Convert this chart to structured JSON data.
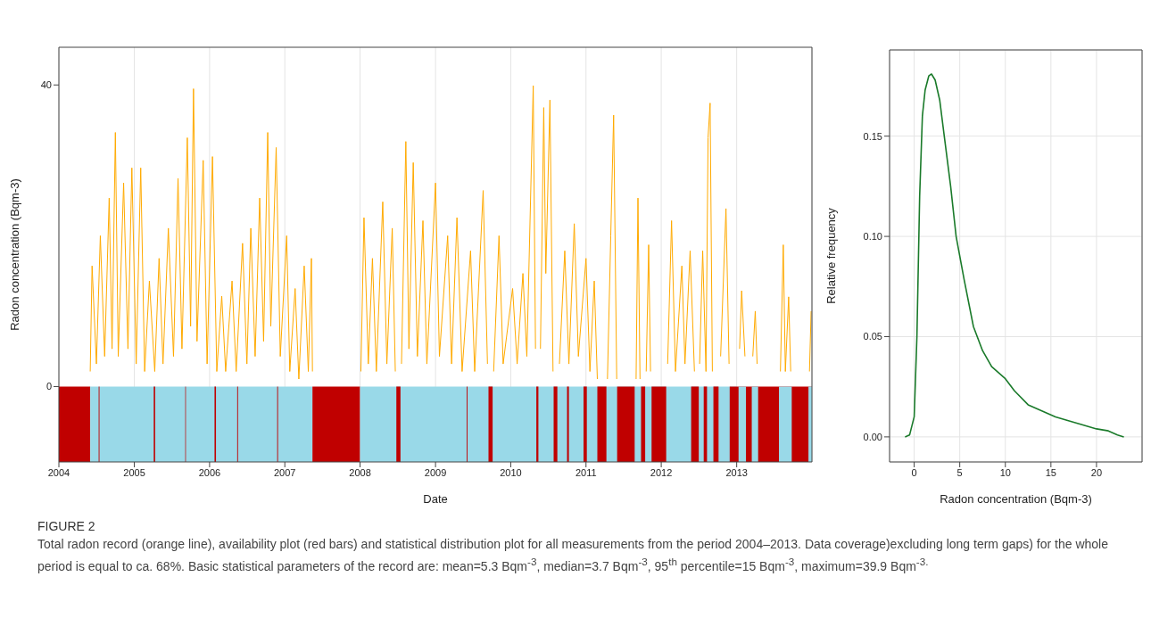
{
  "chart_data": [
    {
      "type": "line",
      "xlabel": "Date",
      "ylabel": "Radon concentration (Bqm-3)",
      "x": [
        "2004-06-01",
        "2004-06-10",
        "2004-07-01",
        "2004-07-20",
        "2004-08-10",
        "2004-09-01",
        "2004-09-15",
        "2004-10-01",
        "2004-10-15",
        "2004-11-10",
        "2004-12-01",
        "2004-12-20",
        "2005-01-10",
        "2005-02-01",
        "2005-02-20",
        "2005-03-15",
        "2005-04-10",
        "2005-05-01",
        "2005-05-20",
        "2005-06-15",
        "2005-07-10",
        "2005-08-01",
        "2005-08-20",
        "2005-09-15",
        "2005-10-01",
        "2005-10-15",
        "2005-11-01",
        "2005-12-01",
        "2005-12-20",
        "2006-01-15",
        "2006-02-05",
        "2006-03-01",
        "2006-03-20",
        "2006-04-20",
        "2006-05-10",
        "2006-06-10",
        "2006-07-01",
        "2006-07-20",
        "2006-08-10",
        "2006-09-01",
        "2006-09-20",
        "2006-10-10",
        "2006-10-25",
        "2006-11-20",
        "2006-12-10",
        "2007-01-10",
        "2007-01-25",
        "2007-02-20",
        "2007-03-10",
        "2007-04-05",
        "2007-04-25",
        "2007-05-10",
        "2007-05-15",
        "2007-09-01",
        "2008-01-05",
        "2008-01-20",
        "2008-02-10",
        "2008-03-01",
        "2008-03-20",
        "2008-04-20",
        "2008-05-10",
        "2008-06-05",
        "2008-06-20",
        "2008-07-05",
        "2008-07-20",
        "2008-08-10",
        "2008-08-25",
        "2008-09-15",
        "2008-10-05",
        "2008-11-01",
        "2008-11-20",
        "2009-01-01",
        "2009-01-20",
        "2009-03-01",
        "2009-03-20",
        "2009-04-15",
        "2009-05-10",
        "2009-06-20",
        "2009-07-10",
        "2009-08-20",
        "2009-09-10",
        "2009-09-25",
        "2009-10-10",
        "2009-11-05",
        "2009-11-25",
        "2010-01-10",
        "2010-02-01",
        "2010-03-01",
        "2010-03-20",
        "2010-04-20",
        "2010-05-01",
        "2010-05-10",
        "2010-05-25",
        "2010-06-10",
        "2010-06-20",
        "2010-07-10",
        "2010-07-25",
        "2010-08-10",
        "2010-08-25",
        "2010-09-20",
        "2010-10-10",
        "2010-11-05",
        "2010-11-25",
        "2011-01-01",
        "2011-01-20",
        "2011-02-10",
        "2011-02-25",
        "2011-03-20",
        "2011-04-15",
        "2011-05-01",
        "2011-05-15",
        "2011-05-30",
        "2011-06-30",
        "2011-09-01",
        "2011-09-10",
        "2011-09-20",
        "2011-10-01",
        "2011-10-20",
        "2011-11-01",
        "2011-11-10",
        "2011-12-10",
        "2012-02-01",
        "2012-02-20",
        "2012-03-10",
        "2012-04-10",
        "2012-04-25",
        "2012-05-20",
        "2012-06-10",
        "2012-06-25",
        "2012-07-05",
        "2012-07-20",
        "2012-08-05",
        "2012-08-15",
        "2012-08-25",
        "2012-09-05",
        "2012-09-25",
        "2012-10-15",
        "2012-11-10",
        "2012-11-25",
        "2012-12-25",
        "2013-01-15",
        "2013-01-25",
        "2013-02-10",
        "2013-03-01",
        "2013-03-20",
        "2013-04-01",
        "2013-04-10",
        "2013-05-01",
        "2013-08-01",
        "2013-08-15",
        "2013-08-25",
        "2013-09-10",
        "2013-09-20",
        "2013-10-15",
        "2013-12-20",
        "2013-12-28"
      ],
      "series": [
        {
          "color": "#ffaa00",
          "values": [
            2,
            16,
            3,
            20,
            4,
            25,
            5,
            33.7,
            4,
            27,
            5,
            29,
            3,
            29,
            2,
            14,
            2,
            17,
            3,
            21,
            4,
            27.6,
            5,
            33,
            8,
            39.5,
            6,
            30,
            3,
            30.5,
            2,
            12,
            2,
            14,
            2,
            19,
            3,
            21,
            4,
            25,
            6,
            33.7,
            8,
            31.7,
            4,
            20,
            2,
            13,
            1,
            16,
            2,
            17,
            2,
            null,
            2,
            22.4,
            3,
            17,
            2,
            24.5,
            3,
            21,
            2,
            null,
            3,
            32.5,
            5,
            29.7,
            4,
            22,
            3,
            27,
            4,
            20,
            3,
            22.4,
            2,
            18,
            2,
            26,
            3,
            null,
            2,
            20,
            3,
            13,
            3,
            15,
            4,
            39.9,
            5,
            null,
            5,
            37,
            15,
            38,
            2,
            null,
            3,
            18,
            3,
            21.6,
            4,
            17,
            2,
            14,
            1,
            null,
            1,
            20,
            36,
            1,
            null,
            1,
            25,
            1,
            null,
            2,
            18.8,
            2,
            null,
            3,
            22,
            2,
            16,
            3,
            18,
            2,
            null,
            3,
            18,
            2,
            33,
            37.6,
            2,
            null,
            4,
            23.6,
            3,
            null,
            5,
            12.7,
            4,
            null,
            4,
            10,
            3,
            null,
            2,
            18.8,
            2,
            11.9,
            2,
            null,
            2,
            10
          ]
        }
      ],
      "xlim": [
        "2004",
        "2014"
      ],
      "xticks": [
        "2004",
        "2005",
        "2006",
        "2007",
        "2008",
        "2009",
        "2010",
        "2011",
        "2012",
        "2013"
      ],
      "ylim": [
        -10,
        45
      ],
      "yticks": [
        0,
        40
      ],
      "grid": "x",
      "bands": [
        {
          "axis": "x",
          "from": "2004-01-01",
          "to": "2004-06-01",
          "color": "#c00000"
        },
        {
          "axis": "x",
          "from": "2004-06-01",
          "to": "2007-05-15",
          "color": "#99d9e8"
        },
        {
          "axis": "x",
          "from": "2004-07-12",
          "to": "2004-07-16",
          "color": "#c00000"
        },
        {
          "axis": "x",
          "from": "2005-04-05",
          "to": "2005-04-12",
          "color": "#c00000"
        },
        {
          "axis": "x",
          "from": "2005-09-05",
          "to": "2005-09-08",
          "color": "#c00000"
        },
        {
          "axis": "x",
          "from": "2006-01-25",
          "to": "2006-02-01",
          "color": "#c00000"
        },
        {
          "axis": "x",
          "from": "2006-05-15",
          "to": "2006-05-19",
          "color": "#c00000"
        },
        {
          "axis": "x",
          "from": "2006-11-25",
          "to": "2006-11-29",
          "color": "#c00000"
        },
        {
          "axis": "x",
          "from": "2007-05-15",
          "to": "2008-01-01",
          "color": "#c00000"
        },
        {
          "axis": "x",
          "from": "2008-01-01",
          "to": "2012-12-31",
          "color": "#99d9e8"
        },
        {
          "axis": "x",
          "from": "2008-06-25",
          "to": "2008-07-15",
          "color": "#c00000"
        },
        {
          "axis": "x",
          "from": "2009-06-01",
          "to": "2009-06-05",
          "color": "#c00000"
        },
        {
          "axis": "x",
          "from": "2009-09-15",
          "to": "2009-10-05",
          "color": "#c00000"
        },
        {
          "axis": "x",
          "from": "2010-05-05",
          "to": "2010-05-15",
          "color": "#c00000"
        },
        {
          "axis": "x",
          "from": "2010-07-28",
          "to": "2010-08-15",
          "color": "#c00000"
        },
        {
          "axis": "x",
          "from": "2010-10-01",
          "to": "2010-10-10",
          "color": "#c00000"
        },
        {
          "axis": "x",
          "from": "2010-12-20",
          "to": "2011-01-05",
          "color": "#c00000"
        },
        {
          "axis": "x",
          "from": "2011-02-25",
          "to": "2011-04-10",
          "color": "#c00000"
        },
        {
          "axis": "x",
          "from": "2011-06-01",
          "to": "2011-08-25",
          "color": "#c00000"
        },
        {
          "axis": "x",
          "from": "2011-09-25",
          "to": "2011-10-15",
          "color": "#c00000"
        },
        {
          "axis": "x",
          "from": "2011-11-15",
          "to": "2012-01-25",
          "color": "#c00000"
        },
        {
          "axis": "x",
          "from": "2012-05-25",
          "to": "2012-07-01",
          "color": "#c00000"
        },
        {
          "axis": "x",
          "from": "2012-07-25",
          "to": "2012-08-10",
          "color": "#c00000"
        },
        {
          "axis": "x",
          "from": "2012-09-10",
          "to": "2012-10-05",
          "color": "#c00000"
        },
        {
          "axis": "x",
          "from": "2012-11-28",
          "to": "2014-01-01",
          "color": "#c00000"
        },
        {
          "axis": "x",
          "from": "2013-01-10",
          "to": "2013-02-15",
          "color": "#99d9e8"
        },
        {
          "axis": "x",
          "from": "2013-03-15",
          "to": "2013-04-15",
          "color": "#99d9e8"
        },
        {
          "axis": "x",
          "from": "2013-07-25",
          "to": "2013-09-25",
          "color": "#99d9e8"
        },
        {
          "axis": "x",
          "from": "2013-12-15",
          "to": "2014-01-01",
          "color": "#99d9e8"
        }
      ],
      "annotations": [
        "FIGURE 2",
        "Total radon record (orange line), availability plot (red bars) and statistical distribution plot for all measurements from the period 2004–2013. Data coverage)excluding long term gaps) for the whole period is equal to ca. 68%. Basic statistical parameters of the record are: mean=5.3 Bqm$^{-3}$, median=3.7 Bqm$^{-3}$, 95$^{th}$ percentile=15 Bqm$^{-3}$, maximum=39.9 Bqm$^{-3.}$"
      ]
    },
    {
      "type": "line",
      "xlabel": "Radon concentration (Bqm-3)",
      "ylabel": "Relative frequency",
      "x": [
        -1,
        -0.5,
        0,
        0.3,
        0.6,
        0.9,
        1.2,
        1.6,
        1.9,
        2.3,
        2.8,
        3.3,
        4,
        4.6,
        5.5,
        6.5,
        7.5,
        8.5,
        10,
        11,
        12.5,
        14,
        15.5,
        17,
        18.5,
        20,
        21.3,
        22.3,
        23
      ],
      "series": [
        {
          "color": "#1a7a2a",
          "values": [
            0,
            0.001,
            0.01,
            0.05,
            0.12,
            0.16,
            0.173,
            0.18,
            0.181,
            0.178,
            0.168,
            0.15,
            0.125,
            0.1,
            0.078,
            0.055,
            0.043,
            0.035,
            0.029,
            0.023,
            0.016,
            0.013,
            0.01,
            0.008,
            0.006,
            0.004,
            0.003,
            0.001,
            0
          ]
        }
      ],
      "xlim": [
        -2.7,
        25
      ],
      "xticks": [
        0,
        5,
        10,
        15,
        20
      ],
      "ylim": [
        -0.0125,
        0.193
      ],
      "yticks": [
        {
          "value": 0,
          "label": "0.00"
        },
        {
          "value": 0.05,
          "label": "0.05"
        },
        {
          "value": 0.1,
          "label": "0.10"
        },
        {
          "value": 0.15,
          "label": "0.15"
        }
      ],
      "grid": true
    }
  ]
}
